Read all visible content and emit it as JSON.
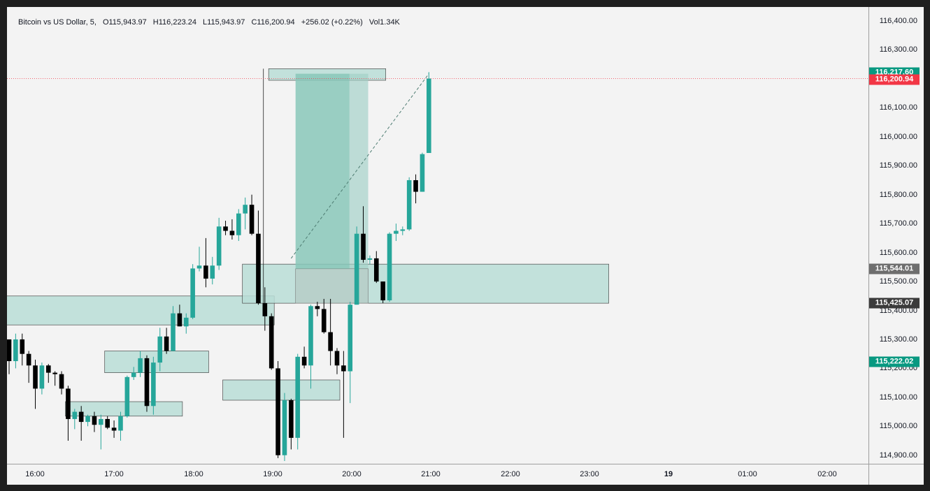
{
  "legend": {
    "symbol": "Bitcoin vs US Dollar, 5,",
    "open": "O115,943.97",
    "high": "H116,223.24",
    "low": "L115,943.97",
    "close": "C116,200.94",
    "change": "+256.02 (+0.22%)",
    "volume": "Vol1.34K"
  },
  "colors": {
    "up": "#26a69a",
    "down": "#000000",
    "zone_fill": "#b8ddd6",
    "zone_border": "#4a4a4a",
    "badge_green": "#089981",
    "badge_red": "#f23645",
    "badge_gray": "#6e6e6e",
    "badge_dark": "#3b3b3b"
  },
  "price_axis": {
    "ticks": [
      "116,400.00",
      "116,300.00",
      "116,200.00",
      "116,100.00",
      "116,000.00",
      "115,900.00",
      "115,800.00",
      "115,700.00",
      "115,600.00",
      "115,500.00",
      "115,400.00",
      "115,300.00",
      "115,200.00",
      "115,100.00",
      "115,000.00",
      "114,900.00"
    ]
  },
  "time_axis": {
    "ticks": [
      "16:00",
      "17:00",
      "18:00",
      "19:00",
      "20:00",
      "21:00",
      "22:00",
      "23:00",
      "19",
      "01:00",
      "02:00"
    ]
  },
  "price_badges": [
    {
      "label": "116,217.60",
      "kind": "green",
      "price": 116217.6
    },
    {
      "label": "116,200.94",
      "kind": "red",
      "price": 116200.94
    },
    {
      "label": "115,544.01",
      "kind": "gray",
      "price": 115544.01
    },
    {
      "label": "115,425.07",
      "kind": "dark",
      "price": 115425.07
    },
    {
      "label": "115,222.02",
      "kind": "green",
      "price": 115222.02
    }
  ],
  "chart_data": {
    "type": "candlestick",
    "interval": "5",
    "candles": [
      {
        "o": 115300,
        "h": 115300,
        "l": 115180,
        "c": 115225
      },
      {
        "o": 115225,
        "h": 115320,
        "l": 115200,
        "c": 115300
      },
      {
        "o": 115300,
        "h": 115320,
        "l": 115210,
        "c": 115250
      },
      {
        "o": 115250,
        "h": 115260,
        "l": 115150,
        "c": 115210
      },
      {
        "o": 115210,
        "h": 115230,
        "l": 115060,
        "c": 115130
      },
      {
        "o": 115130,
        "h": 115220,
        "l": 115110,
        "c": 115210
      },
      {
        "o": 115210,
        "h": 115215,
        "l": 115150,
        "c": 115185
      },
      {
        "o": 115185,
        "h": 115190,
        "l": 115140,
        "c": 115180
      },
      {
        "o": 115180,
        "h": 115190,
        "l": 115110,
        "c": 115130
      },
      {
        "o": 115130,
        "h": 115140,
        "l": 114950,
        "c": 115025
      },
      {
        "o": 115025,
        "h": 115060,
        "l": 114990,
        "c": 115050
      },
      {
        "o": 115050,
        "h": 115070,
        "l": 114950,
        "c": 115015
      },
      {
        "o": 115015,
        "h": 115040,
        "l": 115000,
        "c": 115035
      },
      {
        "o": 115035,
        "h": 115050,
        "l": 114980,
        "c": 115005
      },
      {
        "o": 115005,
        "h": 115040,
        "l": 114920,
        "c": 115025
      },
      {
        "o": 115025,
        "h": 115035,
        "l": 114990,
        "c": 114995
      },
      {
        "o": 114995,
        "h": 115020,
        "l": 114960,
        "c": 114985
      },
      {
        "o": 114985,
        "h": 115050,
        "l": 114950,
        "c": 115035
      },
      {
        "o": 115035,
        "h": 115175,
        "l": 115030,
        "c": 115170
      },
      {
        "o": 115170,
        "h": 115205,
        "l": 115160,
        "c": 115185
      },
      {
        "o": 115185,
        "h": 115260,
        "l": 115170,
        "c": 115235
      },
      {
        "o": 115235,
        "h": 115245,
        "l": 115050,
        "c": 115070
      },
      {
        "o": 115070,
        "h": 115240,
        "l": 115040,
        "c": 115220
      },
      {
        "o": 115220,
        "h": 115340,
        "l": 115190,
        "c": 115310
      },
      {
        "o": 115310,
        "h": 115340,
        "l": 115250,
        "c": 115260
      },
      {
        "o": 115260,
        "h": 115415,
        "l": 115260,
        "c": 115390
      },
      {
        "o": 115390,
        "h": 115420,
        "l": 115345,
        "c": 115345
      },
      {
        "o": 115345,
        "h": 115390,
        "l": 115320,
        "c": 115375
      },
      {
        "o": 115375,
        "h": 115560,
        "l": 115370,
        "c": 115545
      },
      {
        "o": 115545,
        "h": 115620,
        "l": 115535,
        "c": 115555
      },
      {
        "o": 115555,
        "h": 115650,
        "l": 115480,
        "c": 115510
      },
      {
        "o": 115510,
        "h": 115585,
        "l": 115490,
        "c": 115555
      },
      {
        "o": 115555,
        "h": 115720,
        "l": 115540,
        "c": 115690
      },
      {
        "o": 115690,
        "h": 115710,
        "l": 115660,
        "c": 115675
      },
      {
        "o": 115675,
        "h": 115715,
        "l": 115645,
        "c": 115660
      },
      {
        "o": 115660,
        "h": 115750,
        "l": 115640,
        "c": 115735
      },
      {
        "o": 115735,
        "h": 115790,
        "l": 115680,
        "c": 115765
      },
      {
        "o": 115765,
        "h": 115800,
        "l": 115660,
        "c": 115665
      },
      {
        "o": 115665,
        "h": 115745,
        "l": 115420,
        "c": 115425
      },
      {
        "o": 115425,
        "h": 115480,
        "l": 115330,
        "c": 115380
      },
      {
        "o": 115380,
        "h": 115390,
        "l": 115195,
        "c": 115200
      },
      {
        "o": 115200,
        "h": 115225,
        "l": 114890,
        "c": 114900
      },
      {
        "o": 114900,
        "h": 115115,
        "l": 114880,
        "c": 115090
      },
      {
        "o": 115090,
        "h": 115095,
        "l": 114920,
        "c": 114960
      },
      {
        "o": 114960,
        "h": 115250,
        "l": 114920,
        "c": 115240
      },
      {
        "o": 115240,
        "h": 115275,
        "l": 115200,
        "c": 115210
      },
      {
        "o": 115210,
        "h": 115420,
        "l": 115130,
        "c": 115415
      },
      {
        "o": 115415,
        "h": 115430,
        "l": 115380,
        "c": 115405
      },
      {
        "o": 115405,
        "h": 115440,
        "l": 115320,
        "c": 115325
      },
      {
        "o": 115325,
        "h": 115440,
        "l": 115210,
        "c": 115260
      },
      {
        "o": 115260,
        "h": 115270,
        "l": 115180,
        "c": 115210
      },
      {
        "o": 115210,
        "h": 115260,
        "l": 114960,
        "c": 115190
      },
      {
        "o": 115190,
        "h": 115430,
        "l": 115080,
        "c": 115420
      },
      {
        "o": 115420,
        "h": 115690,
        "l": 115420,
        "c": 115665
      },
      {
        "o": 115665,
        "h": 115760,
        "l": 115565,
        "c": 115575
      },
      {
        "o": 115575,
        "h": 115590,
        "l": 115560,
        "c": 115580
      },
      {
        "o": 115580,
        "h": 115605,
        "l": 115495,
        "c": 115500
      },
      {
        "o": 115500,
        "h": 115500,
        "l": 115425,
        "c": 115435
      },
      {
        "o": 115435,
        "h": 115670,
        "l": 115430,
        "c": 115665
      },
      {
        "o": 115665,
        "h": 115700,
        "l": 115640,
        "c": 115675
      },
      {
        "o": 115675,
        "h": 115690,
        "l": 115660,
        "c": 115680
      },
      {
        "o": 115680,
        "h": 115860,
        "l": 115675,
        "c": 115850
      },
      {
        "o": 115850,
        "h": 115870,
        "l": 115770,
        "c": 115810
      },
      {
        "o": 115810,
        "h": 115945,
        "l": 115810,
        "c": 115940
      },
      {
        "o": 115943.97,
        "h": 116223.24,
        "l": 115943.97,
        "c": 116200.94
      }
    ],
    "zones": [
      {
        "p1": 115450,
        "p2": 115350,
        "c1": 0,
        "c2": 40
      },
      {
        "p1": 115260,
        "p2": 115185,
        "c1": 15,
        "c2": 30
      },
      {
        "p1": 115085,
        "p2": 115035,
        "c1": 9,
        "c2": 26
      },
      {
        "p1": 115560,
        "p2": 115425,
        "c1": 36,
        "c2": 91
      },
      {
        "p1": 115160,
        "p2": 115090,
        "c1": 33,
        "c2": 50
      },
      {
        "p1": 116235,
        "p2": 116195,
        "c1": 40,
        "c2": 57
      }
    ],
    "position": {
      "entry_price": 115544.01,
      "target_price": 116217.6,
      "stop_price": 115425.07,
      "c1": 44,
      "c2": 54
    },
    "ylim": [
      114880,
      116440
    ]
  }
}
